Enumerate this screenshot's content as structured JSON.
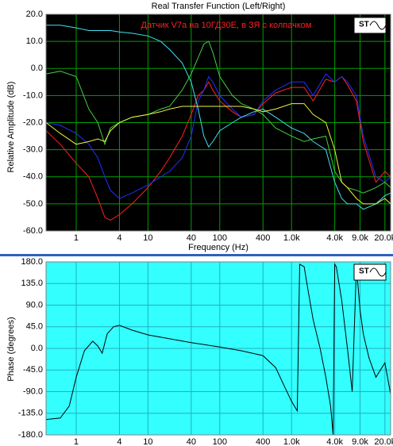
{
  "chart_data": [
    {
      "type": "line",
      "title": "Real Transfer Function (Left/Right)",
      "annotation": "Датчик V7a на 10ГД30Е, в ЗЯ  с колпачком",
      "xlabel": "Frequency (Hz)",
      "ylabel": "Relative Amplitude (dB)",
      "xscale": "log",
      "xlim": [
        0.38,
        24000
      ],
      "ylim": [
        -60,
        20
      ],
      "xticks": [
        1,
        4,
        10,
        40,
        100,
        400,
        {
          "value": 1000,
          "label": "1.0k"
        },
        {
          "value": 4000,
          "label": "4.0k"
        },
        {
          "value": 9000,
          "label": "9.0k"
        },
        {
          "value": 20000,
          "label": "20.0k"
        }
      ],
      "yticks": [
        {
          "value": 20,
          "label": "20.0"
        },
        {
          "value": 10,
          "label": "10.0"
        },
        {
          "value": 0,
          "label": "0.0"
        },
        {
          "value": -10,
          "label": "-10.0"
        },
        {
          "value": -20,
          "label": "-20.0"
        },
        {
          "value": -30,
          "label": "-30.0"
        },
        {
          "value": -40,
          "label": "-40.0"
        },
        {
          "value": -50,
          "label": "-50.0"
        },
        {
          "value": -60,
          "label": "-60.0"
        }
      ],
      "grid": true,
      "plot_background": "#000000",
      "grid_color": "#00a000",
      "x": [
        0.38,
        0.6,
        1,
        1.5,
        2,
        2.5,
        3,
        4,
        6,
        10,
        15,
        20,
        30,
        40,
        50,
        60,
        70,
        80,
        100,
        150,
        200,
        300,
        400,
        600,
        1000,
        1500,
        2000,
        3000,
        4000,
        5000,
        6000,
        8000,
        10000,
        15000,
        20000,
        24000
      ],
      "series": [
        {
          "color": "#ff2020",
          "values": [
            -23,
            -28,
            -35,
            -40,
            -48,
            -55,
            -56,
            -54,
            -50,
            -44,
            -38,
            -33,
            -25,
            -17,
            -10,
            -8,
            -5,
            -8,
            -12,
            -16,
            -18,
            -17,
            -13,
            -9,
            -7,
            -7,
            -12,
            -4,
            -5,
            -3,
            -6,
            -12,
            -27,
            -42,
            -38,
            -40
          ]
        },
        {
          "color": "#2030ff",
          "values": [
            -20,
            -21,
            -24,
            -28,
            -33,
            -40,
            -45,
            -48,
            -46,
            -43,
            -40,
            -38,
            -33,
            -25,
            -12,
            -8,
            -3,
            -5,
            -10,
            -15,
            -18,
            -17,
            -12,
            -8,
            -5,
            -5,
            -10,
            -2,
            -5,
            -3,
            -5,
            -10,
            -25,
            -40,
            -42,
            -40
          ]
        },
        {
          "color": "#40e0f0",
          "values": [
            16,
            16,
            15,
            14,
            14,
            14,
            14,
            13.5,
            13,
            12,
            10,
            7,
            2,
            -5,
            -15,
            -25,
            -29,
            -27,
            -23,
            -20,
            -18,
            -16,
            -15,
            -18,
            -22,
            -24,
            -27,
            -30,
            -42,
            -48,
            -50,
            -50,
            -52,
            -50,
            -47,
            -46
          ]
        },
        {
          "color": "#40d040",
          "values": [
            -2,
            -1,
            -3,
            -15,
            -20,
            -28,
            -22,
            -20,
            -18,
            -17,
            -15,
            -14,
            -8,
            -2,
            4,
            9,
            10,
            6,
            -3,
            -10,
            -13,
            -15,
            -17,
            -22,
            -25,
            -27,
            -26,
            -25,
            -38,
            -42,
            -44,
            -45,
            -46,
            -44,
            -42,
            -44
          ]
        },
        {
          "color": "#f0f040",
          "values": [
            -20,
            -24,
            -28,
            -27,
            -26,
            -27,
            -23,
            -20,
            -18,
            -17,
            -16,
            -15,
            -14,
            -14,
            -14,
            -14,
            -14,
            -14,
            -14,
            -14,
            -14,
            -15,
            -16,
            -15,
            -13,
            -13,
            -17,
            -20,
            -30,
            -42,
            -44,
            -48,
            -50,
            -50,
            -48,
            -50
          ]
        }
      ]
    },
    {
      "type": "line",
      "ylabel": "Phase (degrees)",
      "xscale": "log",
      "xlim": [
        0.38,
        24000
      ],
      "ylim": [
        -180,
        180
      ],
      "xticks": [
        1,
        4,
        10,
        40,
        100,
        400,
        {
          "value": 1000,
          "label": "1.0k"
        },
        {
          "value": 4000,
          "label": "4.0k"
        },
        {
          "value": 9000,
          "label": "9.0k"
        },
        {
          "value": 20000,
          "label": "20.0k"
        }
      ],
      "yticks": [
        {
          "value": 180,
          "label": "180.0"
        },
        {
          "value": 135,
          "label": "135.0"
        },
        {
          "value": 90,
          "label": "90.0"
        },
        {
          "value": 45,
          "label": "45.0"
        },
        {
          "value": 0,
          "label": "0.0"
        },
        {
          "value": -45,
          "label": "-45.0"
        },
        {
          "value": -90,
          "label": "-90.0"
        },
        {
          "value": -135,
          "label": "-135.0"
        },
        {
          "value": -180,
          "label": "-180.0"
        }
      ],
      "grid": true,
      "plot_background": "#33ffff",
      "grid_color": "#20b0c0",
      "x": [
        0.38,
        0.6,
        0.8,
        1,
        1.3,
        1.7,
        2,
        2.3,
        2.7,
        3.3,
        4,
        6,
        10,
        20,
        40,
        100,
        200,
        400,
        600,
        800,
        1000,
        1200,
        1300,
        1500,
        1700,
        2000,
        2500,
        3000,
        3500,
        3800,
        4000,
        4200,
        5000,
        6000,
        7000,
        8000,
        9000,
        10000,
        12000,
        15000,
        20000,
        24000
      ],
      "series": [
        {
          "color": "#000000",
          "values": [
            -148,
            -145,
            -120,
            -60,
            -5,
            15,
            5,
            -10,
            30,
            45,
            48,
            38,
            28,
            20,
            12,
            3,
            -5,
            -15,
            -40,
            -80,
            -110,
            -130,
            175,
            170,
            120,
            60,
            0,
            -60,
            -120,
            -180,
            175,
            170,
            100,
            0,
            -90,
            170,
            80,
            30,
            -20,
            -60,
            -30,
            -95
          ]
        }
      ]
    }
  ]
}
